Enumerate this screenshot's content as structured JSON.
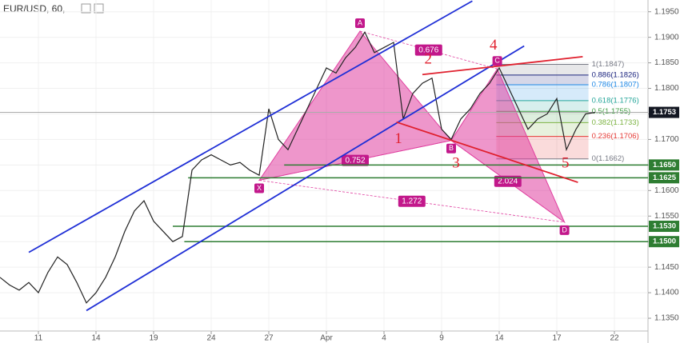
{
  "chart_data": {
    "type": "line",
    "title": "EUR/USD, 60,",
    "color": "#222222",
    "values": [
      1.143,
      1.1415,
      1.1405,
      1.142,
      1.14,
      1.144,
      1.147,
      1.1455,
      1.142,
      1.138,
      1.14,
      1.143,
      1.147,
      1.152,
      1.156,
      1.158,
      1.154,
      1.152,
      1.15,
      1.151,
      1.164,
      1.166,
      1.167,
      1.166,
      1.165,
      1.1655,
      1.164,
      1.163,
      1.176,
      1.17,
      1.168,
      1.172,
      1.176,
      1.18,
      1.184,
      1.183,
      1.186,
      1.188,
      1.191,
      1.187,
      1.188,
      1.189,
      1.174,
      1.179,
      1.181,
      1.182,
      1.172,
      1.17,
      1.174,
      1.176,
      1.179,
      1.181,
      1.184,
      1.18,
      1.176,
      1.172,
      1.174,
      1.175,
      1.178,
      1.168,
      1.172,
      1.175,
      1.1753
    ],
    "xlim": [
      0,
      67.5
    ],
    "xticks": [
      {
        "value": 4,
        "label": "11"
      },
      {
        "value": 10,
        "label": "14"
      },
      {
        "value": 16,
        "label": "19"
      },
      {
        "value": 22,
        "label": "24"
      },
      {
        "value": 28,
        "label": "27"
      },
      {
        "value": 34,
        "label": "Apr"
      },
      {
        "value": 40,
        "label": "4"
      },
      {
        "value": 46,
        "label": "9"
      },
      {
        "value": 52,
        "label": "14"
      },
      {
        "value": 58,
        "label": "17"
      },
      {
        "value": 64,
        "label": "22"
      }
    ],
    "ylim": [
      1.1325,
      1.1973
    ],
    "yticks": [
      {
        "value": 1.135,
        "label": "1.1350"
      },
      {
        "value": 1.14,
        "label": "1.1400"
      },
      {
        "value": 1.145,
        "label": "1.1450"
      },
      {
        "value": 1.15,
        "label": "1.1500"
      },
      {
        "value": 1.155,
        "label": "1.1550"
      },
      {
        "value": 1.16,
        "label": "1.1600"
      },
      {
        "value": 1.165,
        "label": "1.1650"
      },
      {
        "value": 1.17,
        "label": "1.1700"
      },
      {
        "value": 1.175,
        "label": "1.1750"
      },
      {
        "value": 1.18,
        "label": "1.1800"
      },
      {
        "value": 1.185,
        "label": "1.1850"
      },
      {
        "value": 1.19,
        "label": "1.1900"
      },
      {
        "value": 1.195,
        "label": "1.1950"
      }
    ],
    "price_lines": [
      {
        "value": 1.1753,
        "label": "1.1753",
        "color": "#131722",
        "start": 0
      },
      {
        "value": 1.165,
        "label": "1.1650",
        "color": "#2e7d32",
        "start": 29.6
      },
      {
        "value": 1.1625,
        "label": "1.1625",
        "color": "#2e7d32",
        "start": 19.6
      },
      {
        "value": 1.153,
        "label": "1.1530",
        "color": "#2e7d32",
        "start": 18
      },
      {
        "value": 1.15,
        "label": "1.1500",
        "color": "#2e7d32",
        "start": 19.2
      }
    ],
    "trendlines": [
      {
        "color": "#1f2fd6",
        "points": [
          [
            3,
            1.1479
          ],
          [
            49.2,
            1.1971
          ]
        ]
      },
      {
        "color": "#1f2fd6",
        "points": [
          [
            9,
            1.1365
          ],
          [
            54.6,
            1.1883
          ]
        ]
      },
      {
        "color": "#e0202e",
        "points": [
          [
            41.3,
            1.1734
          ],
          [
            60.2,
            1.1616
          ]
        ]
      },
      {
        "color": "#e0202e",
        "points": [
          [
            44,
            1.1827
          ],
          [
            60.7,
            1.1862
          ]
        ]
      }
    ],
    "fib": {
      "start": 51.7,
      "end": 61.3,
      "levels": [
        {
          "value": 1.1847,
          "label": "1(1.1847)",
          "color": "#787b86"
        },
        {
          "value": 1.1826,
          "label": "0.886(1.1826)",
          "color": "#1a237e"
        },
        {
          "value": 1.1807,
          "label": "0.786(1.1807)",
          "color": "#1e88e5"
        },
        {
          "value": 1.1776,
          "label": "0.618(1.1776)",
          "color": "#26a69a"
        },
        {
          "value": 1.1755,
          "label": "0.5(1.1755)",
          "color": "#43a047"
        },
        {
          "value": 1.1733,
          "label": "0.382(1.1733)",
          "color": "#7cb342"
        },
        {
          "value": 1.1706,
          "label": "0.236(1.1706)",
          "color": "#e53935"
        },
        {
          "value": 1.1662,
          "label": "0(1.1662)",
          "color": "#787b86"
        }
      ]
    },
    "pattern": {
      "color": "#e040a0",
      "points": [
        {
          "name": "X",
          "x": 27,
          "value": 1.162
        },
        {
          "name": "A",
          "x": 37.5,
          "value": 1.1912
        },
        {
          "name": "B",
          "x": 47,
          "value": 1.1698
        },
        {
          "name": "C",
          "x": 51.8,
          "value": 1.1838
        },
        {
          "name": "D",
          "x": 58.8,
          "value": 1.1538
        }
      ],
      "ratios": [
        {
          "label": "0.752",
          "from": 0,
          "to": 2
        },
        {
          "label": "0.676",
          "from": 1,
          "to": 3
        },
        {
          "label": "2.024",
          "from": 2,
          "to": 4
        },
        {
          "label": "1.272",
          "from": 0,
          "to": 4
        }
      ]
    },
    "waves": {
      "color": "#e0202e",
      "labels": [
        {
          "label": "1",
          "x": 41.5,
          "value": 1.17
        },
        {
          "label": "2",
          "x": 44.6,
          "value": 1.1855
        },
        {
          "label": "3",
          "x": 47.5,
          "value": 1.1652
        },
        {
          "label": "4",
          "x": 51.4,
          "value": 1.1883
        },
        {
          "label": "5",
          "x": 58.9,
          "value": 1.1652
        }
      ]
    }
  }
}
